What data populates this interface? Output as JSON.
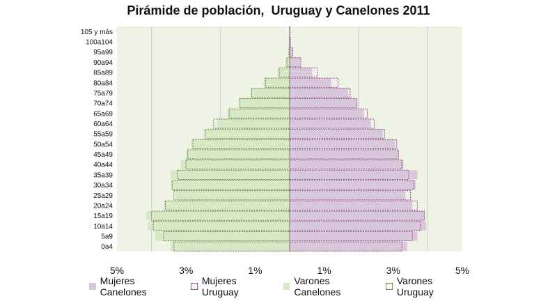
{
  "chart_data": {
    "type": "bar",
    "orientation": "horizontal",
    "title": "Pirámide de población,  Uruguay y Canelones 2011",
    "categories": [
      "0a4",
      "5a9",
      "10a14",
      "15a19",
      "20a24",
      "25a29",
      "30a34",
      "35a39",
      "40a44",
      "45a49",
      "50a54",
      "55a59",
      "60a64",
      "65a69",
      "70a74",
      "75a79",
      "80a84",
      "85a89",
      "90a94",
      "95a99",
      "100a104",
      "105 y más"
    ],
    "x_tick_labels": [
      "5%",
      "3%",
      "1%",
      "1%",
      "3%",
      "5%"
    ],
    "xlim": [
      -5,
      5
    ],
    "series": [
      {
        "name": "Mujeres Canelones",
        "side": "right",
        "style": "filled",
        "color": "#d9c8d9",
        "values": [
          3.4,
          3.7,
          3.95,
          3.9,
          3.55,
          3.35,
          3.65,
          3.7,
          3.3,
          3.15,
          3.05,
          2.7,
          2.35,
          2.15,
          1.95,
          1.7,
          1.2,
          0.65,
          0.3,
          0.1,
          0.03,
          0.01
        ]
      },
      {
        "name": "Mujeres Uruguay",
        "side": "right",
        "style": "dashed",
        "color": "#8a3f8a",
        "values": [
          3.25,
          3.55,
          3.8,
          3.9,
          3.7,
          3.5,
          3.6,
          3.45,
          3.25,
          3.15,
          3.1,
          2.75,
          2.45,
          2.25,
          1.95,
          1.75,
          1.4,
          0.8,
          0.32,
          0.08,
          0.02,
          0.01
        ]
      },
      {
        "name": "Varones Canelones",
        "side": "left",
        "style": "filled",
        "color": "#d6e8c4",
        "values": [
          3.45,
          3.9,
          4.1,
          4.15,
          3.65,
          3.3,
          3.45,
          3.45,
          3.15,
          3.0,
          2.85,
          2.45,
          2.1,
          1.8,
          1.45,
          1.1,
          0.75,
          0.35,
          0.12,
          0.03,
          0.01,
          0.005
        ]
      },
      {
        "name": "Varones Uruguay",
        "side": "left",
        "style": "dashed",
        "color": "#5e7c3a",
        "values": [
          3.35,
          3.65,
          3.95,
          4.0,
          3.6,
          3.35,
          3.4,
          3.25,
          3.0,
          2.95,
          2.8,
          2.45,
          2.2,
          1.75,
          1.45,
          1.1,
          0.7,
          0.3,
          0.08,
          0.02,
          0.005,
          0.002
        ]
      }
    ],
    "grid": true,
    "legend": "bottom"
  }
}
